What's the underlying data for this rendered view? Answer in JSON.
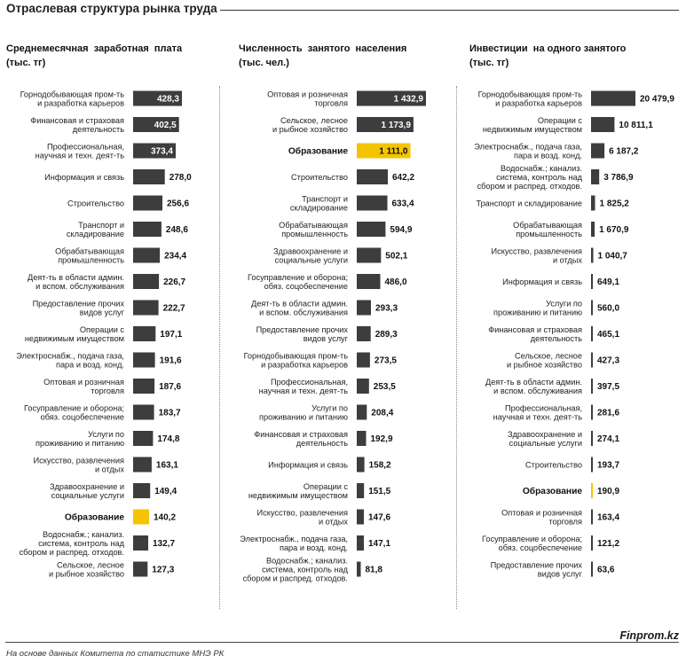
{
  "page": {
    "title": "Отраслевая структура рынка труда",
    "source": "На основе данных  Комитета по статистике МНЭ РК",
    "brand": "Finprom.kz",
    "colors": {
      "bar": "#3d3d3d",
      "highlight": "#f5c400",
      "text": "#111111"
    }
  },
  "chart_data": [
    {
      "type": "bar",
      "orientation": "horizontal",
      "title": "Среднемесячная  заработная  плата\n(тыс. тг)",
      "highlight": "Образование",
      "categories": [
        "Горнодобывающая пром-ть\nи разработка карьеров",
        "Финансовая и страховая\nдеятельность",
        "Профессиональная,\nнаучная и техн. деят-ть",
        "Информация и связь",
        "Строительство",
        "Транспорт и\nскладирование",
        "Обрабатывающая\nпромышленность",
        "Деят-ть в области админ.\nи вспом. обслуживания",
        "Предоставление прочих\nвидов услуг",
        "Операции с\nнедвижимым имуществом",
        "Электроснабж., подача газа,\nпара и возд. конд.",
        "Оптовая и розничная\nторговля",
        "Госуправление и оборона;\nобяз. соцобеспечение",
        "Услуги по\nпроживанию и питанию",
        "Искусство, развлечения\nи отдых",
        "Здравоохранение и\nсоциальные услуги",
        "Образование",
        "Водоснабж.; канализ.\nсистема, контроль над\nсбором и распред. отходов.",
        "Сельское, лесное\nи рыбное хозяйство"
      ],
      "values": [
        428.3,
        402.5,
        373.4,
        278.0,
        256.6,
        248.6,
        234.4,
        226.7,
        222.7,
        197.1,
        191.6,
        187.6,
        183.7,
        174.8,
        163.1,
        149.4,
        140.2,
        132.7,
        127.3
      ],
      "value_labels": [
        "428,3",
        "402,5",
        "373,4",
        "278,0",
        "256,6",
        "248,6",
        "234,4",
        "226,7",
        "222,7",
        "197,1",
        "191,6",
        "187,6",
        "183,7",
        "174,8",
        "163,1",
        "149,4",
        "140,2",
        "132,7",
        "127,3"
      ]
    },
    {
      "type": "bar",
      "orientation": "horizontal",
      "title": "Численность  занятого  населения\n(тыс. чел.)",
      "highlight": "Образование",
      "categories": [
        "Оптовая и розничная\nторговля",
        "Сельское, лесное\nи рыбное хозяйство",
        "Образование",
        "Строительство",
        "Транспорт и\nскладирование",
        "Обрабатывающая\nпромышленность",
        "Здравоохранение и\nсоциальные услуги",
        "Госуправление и оборона;\nобяз. соцобеспечение",
        "Деят-ть в области админ.\nи вспом. обслуживания",
        "Предоставление прочих\nвидов услуг",
        "Горнодобывающая пром-ть\nи разработка карьеров",
        "Профессиональная,\nнаучная и техн. деят-ть",
        "Услуги по\nпроживанию и питанию",
        "Финансовая и страховая\nдеятельность",
        "Информация и связь",
        "Операции с\nнедвижимым имуществом",
        "Искусство, развлечения\nи отдых",
        "Электроснабж., подача газа,\nпара и возд. конд.",
        "Водоснабж.; канализ.\nсистема, контроль над\nсбором и распред. отходов."
      ],
      "values": [
        1432.9,
        1173.9,
        1111.0,
        642.2,
        633.4,
        594.9,
        502.1,
        486.0,
        293.3,
        289.3,
        273.5,
        253.5,
        208.4,
        192.9,
        158.2,
        151.5,
        147.6,
        147.1,
        81.8
      ],
      "value_labels": [
        "1 432,9",
        "1 173,9",
        "1 111,0",
        "642,2",
        "633,4",
        "594,9",
        "502,1",
        "486,0",
        "293,3",
        "289,3",
        "273,5",
        "253,5",
        "208,4",
        "192,9",
        "158,2",
        "151,5",
        "147,6",
        "147,1",
        "81,8"
      ]
    },
    {
      "type": "bar",
      "orientation": "horizontal",
      "title": "Инвестиции  на одного занятого\n(тыс. тг)",
      "highlight": "Образование",
      "categories": [
        "Горнодобывающая пром-ть\nи разработка карьеров",
        "Операции с\nнедвижимым имуществом",
        "Электроснабж., подача газа,\nпара и возд. конд.",
        "Водоснабж.; канализ.\nсистема, контроль над\nсбором и распред. отходов.",
        "Транспорт и складирование",
        "Обрабатывающая\nпромышленность",
        "Искусство, развлечения\nи отдых",
        "Информация и связь",
        "Услуги по\nпроживанию и питанию",
        "Финансовая и страховая\nдеятельность",
        "Сельское, лесное\nи рыбное хозяйство",
        "Деят-ть в области админ.\nи вспом. обслуживания",
        "Профессиональная,\nнаучная и техн. деят-ть",
        "Здравоохранение и\nсоциальные услуги",
        "Строительство",
        "Образование",
        "Оптовая и розничная\nторговля",
        "Госуправление и оборона;\nобяз. соцобеспечение",
        "Предоставление прочих\nвидов услуг"
      ],
      "values": [
        20479.9,
        10811.1,
        6187.2,
        3786.9,
        1825.2,
        1670.9,
        1040.7,
        649.1,
        560.0,
        465.1,
        427.3,
        397.5,
        281.6,
        274.1,
        193.7,
        190.9,
        163.4,
        121.2,
        63.6
      ],
      "value_labels": [
        "20 479,9",
        "10 811,1",
        "6 187,2",
        "3 786,9",
        "1 825,2",
        "1 670,9",
        "1 040,7",
        "649,1",
        "560,0",
        "465,1",
        "427,3",
        "397,5",
        "281,6",
        "274,1",
        "193,7",
        "190,9",
        "163,4",
        "121,2",
        "63,6"
      ]
    }
  ]
}
